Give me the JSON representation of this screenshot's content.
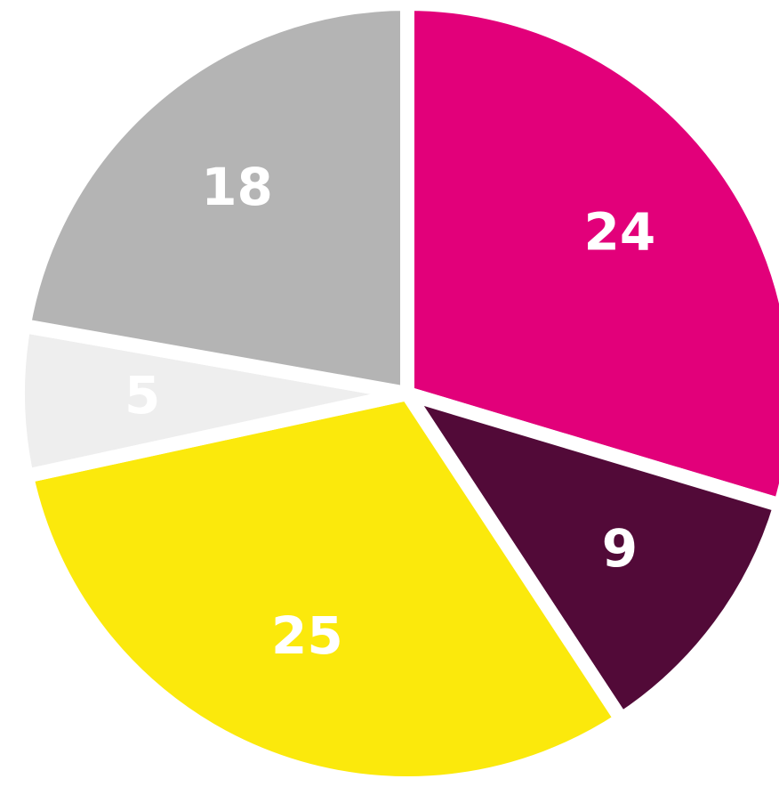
{
  "chart_data": {
    "type": "pie",
    "values": [
      24,
      9,
      25,
      5,
      18
    ],
    "colors": [
      "#e2007a",
      "#520a38",
      "#fbe90c",
      "#eeeeee",
      "#b4b4b4"
    ]
  }
}
